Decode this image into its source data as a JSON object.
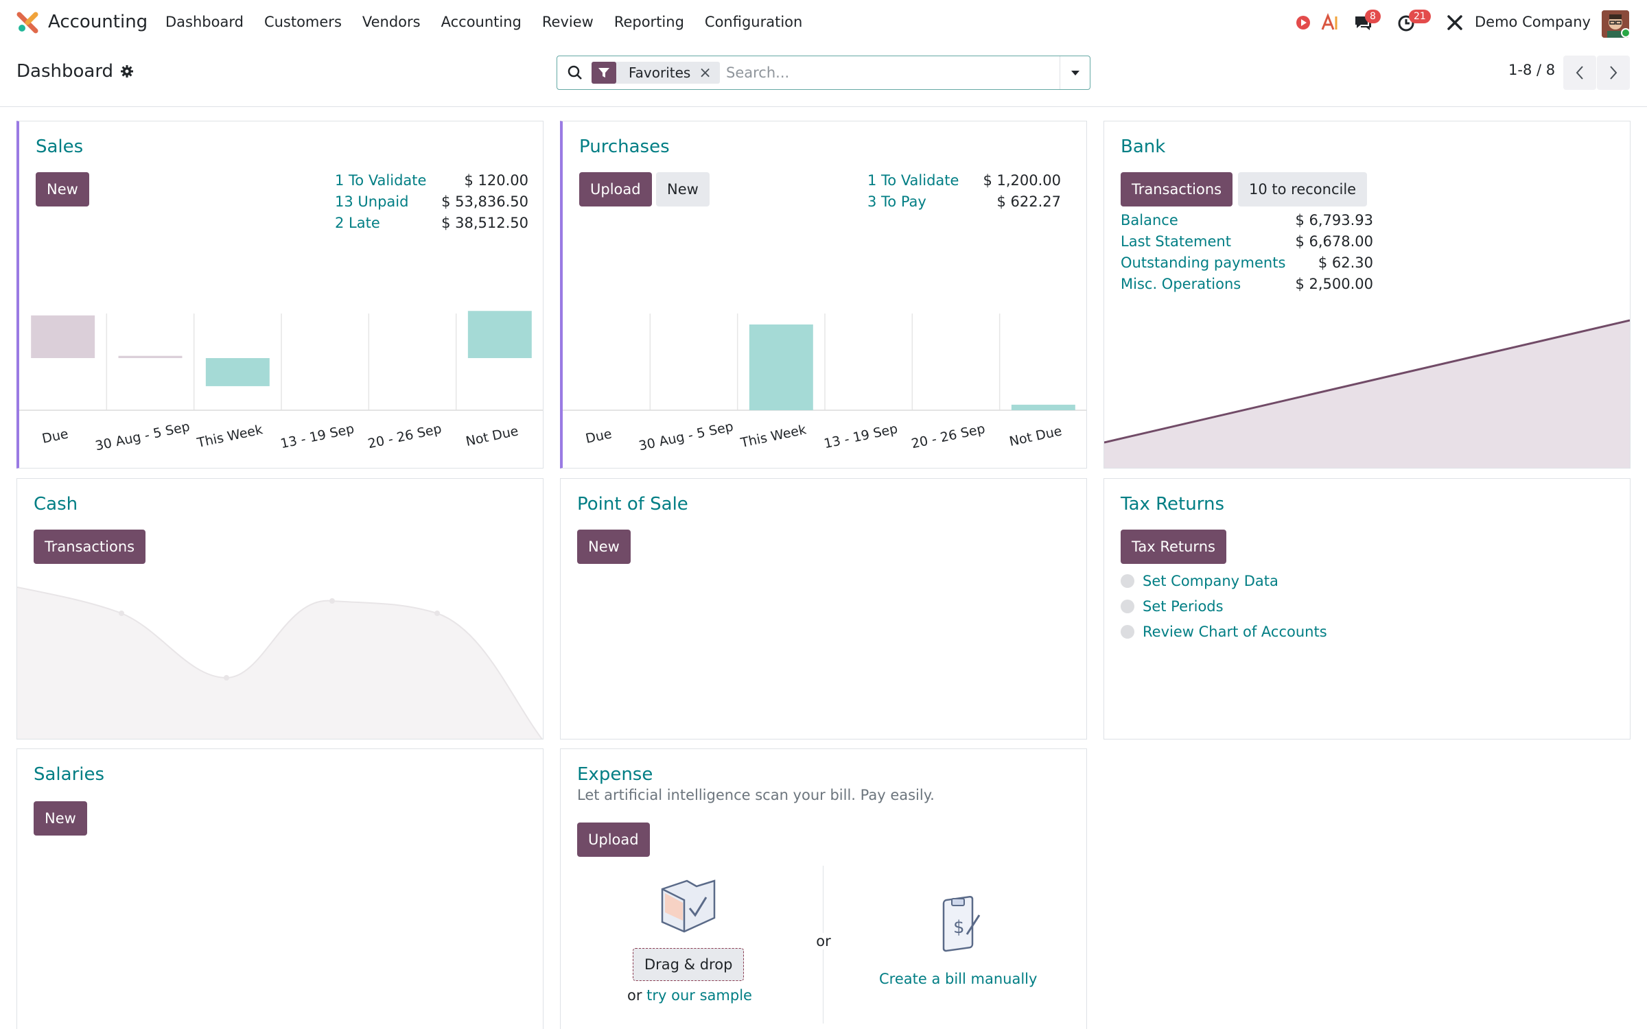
{
  "app": {
    "name": "Accounting",
    "brand_color": "#714b67",
    "link_color": "#017e84"
  },
  "menu": [
    "Dashboard",
    "Customers",
    "Vendors",
    "Accounting",
    "Review",
    "Reporting",
    "Configuration"
  ],
  "systray": {
    "messages_count": "8",
    "activities_count": "21",
    "company": "Demo Company"
  },
  "control_panel": {
    "breadcrumb": "Dashboard",
    "facet": "Favorites",
    "search_placeholder": "Search...",
    "pager": "1-8 / 8"
  },
  "sales": {
    "title": "Sales",
    "new_label": "New",
    "stats": [
      {
        "label": "1 To Validate",
        "value": "$ 120.00"
      },
      {
        "label": "13 Unpaid",
        "value": "$ 53,836.50"
      },
      {
        "label": "2 Late",
        "value": "$ 38,512.50"
      }
    ],
    "chart_data": {
      "type": "bar",
      "categories": [
        "Due",
        "30 Aug - 5 Sep",
        "This Week",
        "13 - 19 Sep",
        "20 - 26 Sep",
        "Not Due"
      ],
      "values": [
        -38000,
        -2000,
        25000,
        0,
        0,
        -42000
      ]
    }
  },
  "purchases": {
    "title": "Purchases",
    "upload_label": "Upload",
    "new_label": "New",
    "stats": [
      {
        "label": "1 To Validate",
        "value": "$ 1,200.00"
      },
      {
        "label": "3 To Pay",
        "value": "$ 622.27"
      }
    ],
    "chart_data": {
      "type": "bar",
      "categories": [
        "Due",
        "30 Aug - 5 Sep",
        "This Week",
        "13 - 19 Sep",
        "20 - 26 Sep",
        "Not Due"
      ],
      "values": [
        0,
        0,
        620,
        0,
        0,
        40
      ]
    }
  },
  "bank": {
    "title": "Bank",
    "transactions_label": "Transactions",
    "reconcile_label": "10 to reconcile",
    "stats": [
      {
        "label": "Balance",
        "value": "$ 6,793.93"
      },
      {
        "label": "Last Statement",
        "value": "$ 6,678.00"
      },
      {
        "label": "Outstanding payments",
        "value": "$ 62.30"
      },
      {
        "label": "Misc. Operations",
        "value": "$ 2,500.00"
      }
    ]
  },
  "cash": {
    "title": "Cash",
    "transactions_label": "Transactions"
  },
  "pos": {
    "title": "Point of Sale",
    "new_label": "New"
  },
  "tax": {
    "title": "Tax Returns",
    "button_label": "Tax Returns",
    "steps": [
      "Set Company Data",
      "Set Periods",
      "Review Chart of Accounts"
    ]
  },
  "salaries": {
    "title": "Salaries",
    "new_label": "New"
  },
  "expense": {
    "title": "Expense",
    "subtitle": "Let artificial intelligence scan your bill. Pay easily.",
    "upload_label": "Upload",
    "drag_label": "Drag & drop",
    "or_label": "or",
    "sample_prefix": "or",
    "sample_link": "try our sample",
    "manual_link": "Create a bill manually"
  }
}
